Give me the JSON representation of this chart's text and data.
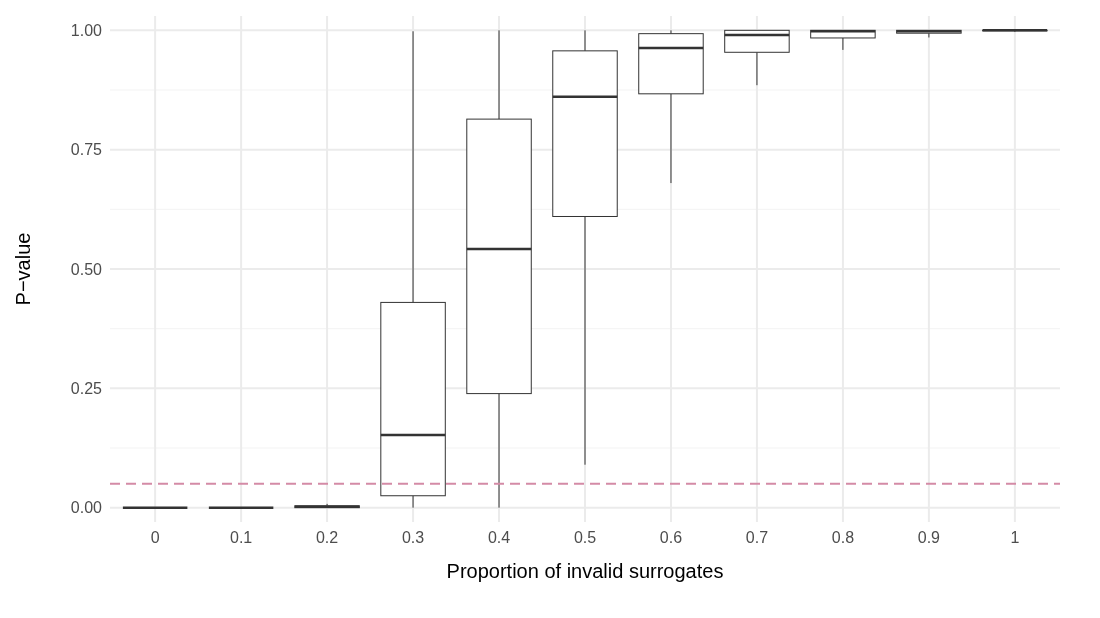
{
  "chart_data": {
    "type": "box",
    "xlabel": "Proportion of invalid surrogates",
    "ylabel": "P−value",
    "categories": [
      "0",
      "0.1",
      "0.2",
      "0.3",
      "0.4",
      "0.5",
      "0.6",
      "0.7",
      "0.8",
      "0.9",
      "1"
    ],
    "boxes": [
      {
        "low": 0,
        "q1": 0,
        "median": 0,
        "q3": 0,
        "high": 0
      },
      {
        "low": 0,
        "q1": 0,
        "median": 0,
        "q3": 0,
        "high": 0
      },
      {
        "low": 0,
        "q1": 0,
        "median": 0.002,
        "q3": 0.004,
        "high": 0.008
      },
      {
        "low": 0,
        "q1": 0.025,
        "median": 0.152,
        "q3": 0.43,
        "high": 0.998
      },
      {
        "low": 0,
        "q1": 0.239,
        "median": 0.542,
        "q3": 0.814,
        "high": 1
      },
      {
        "low": 0.09,
        "q1": 0.61,
        "median": 0.861,
        "q3": 0.957,
        "high": 1
      },
      {
        "low": 0.68,
        "q1": 0.867,
        "median": 0.963,
        "q3": 0.993,
        "high": 1
      },
      {
        "low": 0.885,
        "q1": 0.954,
        "median": 0.99,
        "q3": 1,
        "high": 1
      },
      {
        "low": 0.959,
        "q1": 0.984,
        "median": 0.998,
        "q3": 1,
        "high": 1
      },
      {
        "low": 0.985,
        "q1": 0.994,
        "median": 0.998,
        "q3": 1,
        "high": 1
      },
      {
        "low": 0.997,
        "q1": 0.999,
        "median": 1,
        "q3": 1,
        "high": 1
      }
    ],
    "color": "#333333",
    "ylim": [
      -0.03,
      1.03
    ],
    "yticks": [
      {
        "value": 0,
        "label": "0.00"
      },
      {
        "value": 0.25,
        "label": "0.25"
      },
      {
        "value": 0.5,
        "label": "0.50"
      },
      {
        "value": 0.75,
        "label": "0.75"
      },
      {
        "value": 1,
        "label": "1.00"
      }
    ],
    "grid": true,
    "ref_lines": [
      {
        "axis": "y",
        "value": 0.05,
        "color": "#d48ba6",
        "line_style": "dashed"
      }
    ]
  }
}
